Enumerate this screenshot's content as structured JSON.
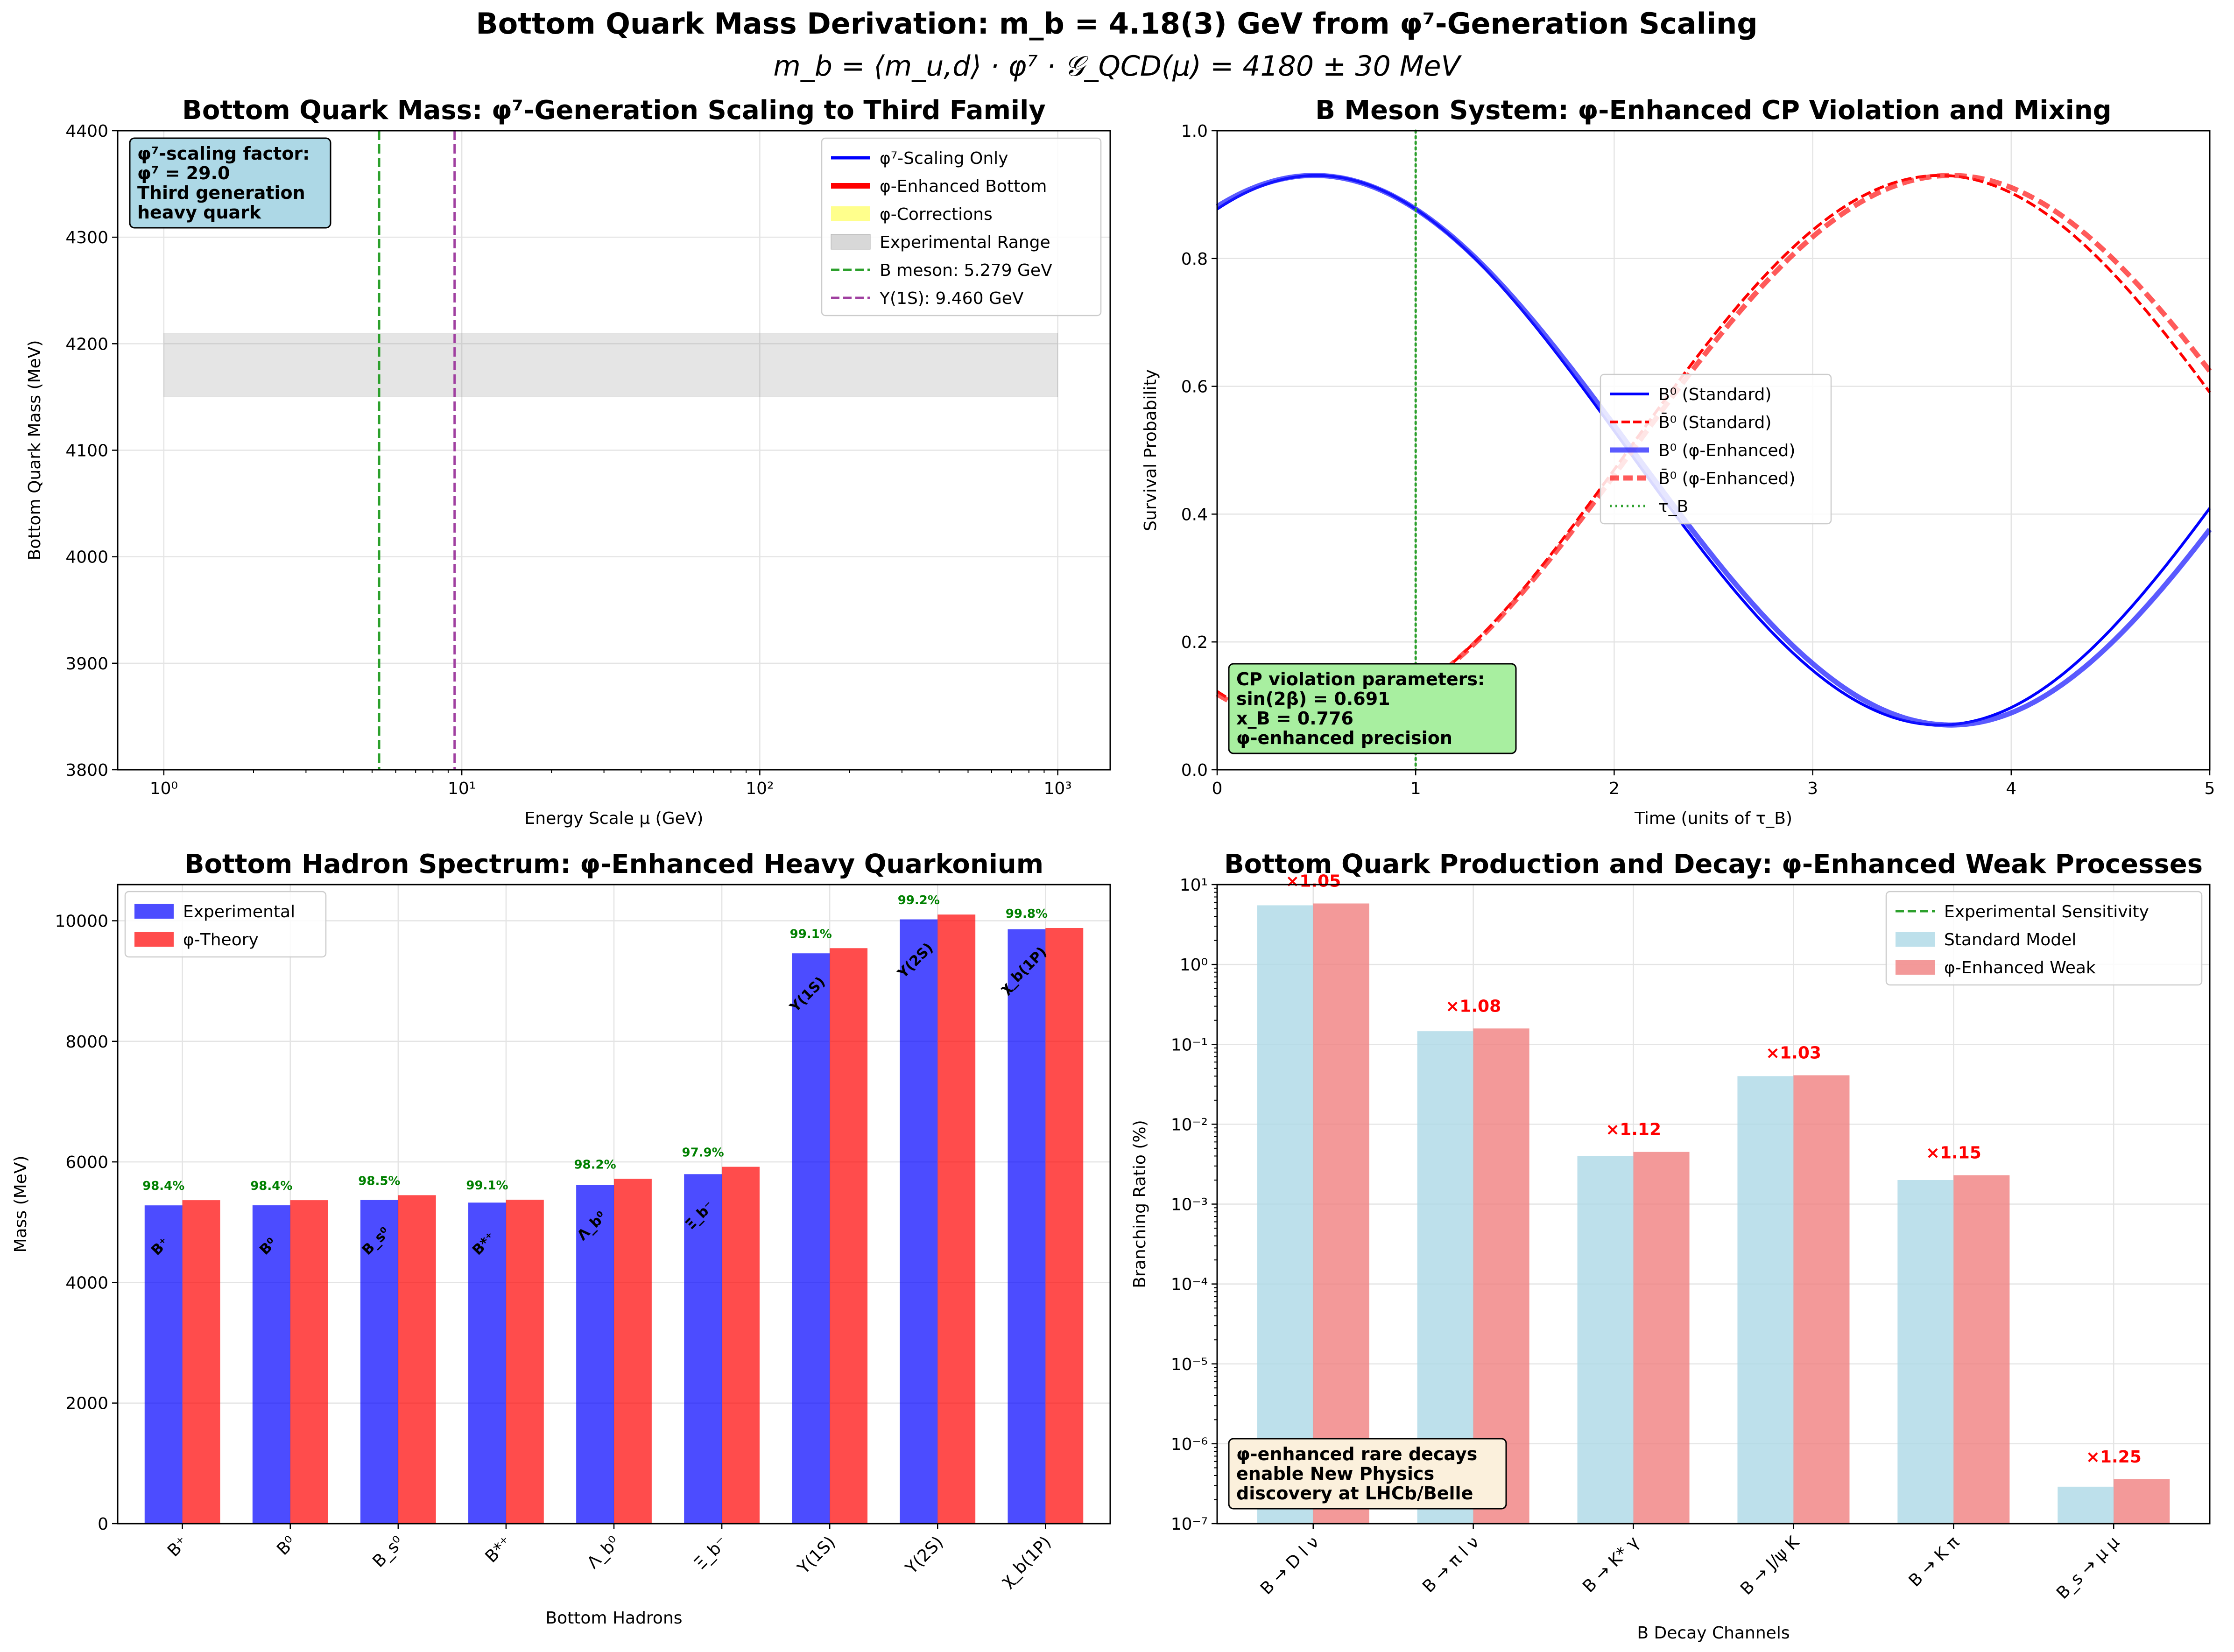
{
  "figure": {
    "suptitle": "Bottom Quark Mass Derivation: m_b = 4.18(3) GeV from φ⁷-Generation Scaling",
    "formula": "m_b = ⟨m_u,d⟩ · φ⁷ · 𝒢_QCD(μ) = 4180 ± 30 MeV"
  },
  "chart_data": [
    {
      "type": "line",
      "title": "Bottom Quark Mass: φ⁷-Generation Scaling to Third Family",
      "xlabel": "Energy Scale μ (GeV)",
      "ylabel": "Bottom Quark Mass (MeV)",
      "xscale": "log",
      "xlim": [
        0.7,
        1500
      ],
      "ylim": [
        3800,
        4400
      ],
      "xticks": [
        1,
        10,
        100,
        1000
      ],
      "xtick_labels": [
        "10⁰",
        "10¹",
        "10²",
        "10³"
      ],
      "yticks": [
        3800,
        3900,
        4000,
        4100,
        4200,
        4300,
        4400
      ],
      "grid": true,
      "experimental_range": {
        "x": [
          1,
          1000
        ],
        "y": [
          4150,
          4210
        ]
      },
      "vlines": [
        {
          "x": 5.279,
          "label": "B meson: 5.279 GeV",
          "color": "#2ca02c"
        },
        {
          "x": 9.46,
          "label": "Υ(1S): 9.460 GeV",
          "color": "#a040a0"
        }
      ],
      "legend": [
        "φ⁷-Scaling Only",
        "φ-Enhanced Bottom",
        "φ-Corrections",
        "Experimental Range",
        "B meson: 5.279 GeV",
        "Υ(1S): 9.460 GeV"
      ],
      "legend_position": "upper-right",
      "annotation": [
        "φ⁷-scaling factor:",
        "φ⁷ = 29.0",
        "Third generation",
        "heavy quark"
      ]
    },
    {
      "type": "line",
      "title": "B Meson System: φ-Enhanced CP Violation and Mixing",
      "xlabel": "Time (units of τ_B)",
      "ylabel": "Survival Probability",
      "xlim": [
        0,
        5
      ],
      "ylim": [
        0,
        1
      ],
      "xticks": [
        0,
        1,
        2,
        3,
        4,
        5
      ],
      "yticks": [
        0,
        0.2,
        0.4,
        0.6,
        0.8,
        1.0
      ],
      "grid": true,
      "model": {
        "B0_standard": {
          "amplitude": 0.43,
          "omega": 1.0,
          "phase": 0.5,
          "offset": 0.5
        },
        "B0bar_standard": {
          "amplitude": -0.43,
          "omega": 1.0,
          "phase": 0.5,
          "offset": 0.5
        },
        "B0_enhanced": {
          "amplitude": 0.43,
          "omega": 0.98,
          "phase": 0.48,
          "offset": 0.5
        },
        "B0bar_enhanced": {
          "amplitude": -0.43,
          "omega": 0.98,
          "phase": 0.48,
          "offset": 0.5
        }
      },
      "tau_line": 1,
      "legend": [
        "B⁰ (Standard)",
        "B̄⁰ (Standard)",
        "B⁰ (φ-Enhanced)",
        "B̄⁰ (φ-Enhanced)",
        "τ_B"
      ],
      "legend_position": "center-right",
      "annotation": [
        "CP violation parameters:",
        "sin(2β) = 0.691",
        "x_B = 0.776",
        "φ-enhanced precision"
      ]
    },
    {
      "type": "bar",
      "title": "Bottom Hadron Spectrum: φ-Enhanced Heavy Quarkonium",
      "xlabel": "Bottom Hadrons",
      "ylabel": "Mass (MeV)",
      "ylim": [
        0,
        10600
      ],
      "yticks": [
        0,
        2000,
        4000,
        6000,
        8000,
        10000
      ],
      "grid": true,
      "categories": [
        "B⁺",
        "B⁰",
        "B_s⁰",
        "B*⁺",
        "Λ_b⁰",
        "Ξ_b⁻",
        "Υ(1S)",
        "Υ(2S)",
        "χ_b(1P)"
      ],
      "series": [
        {
          "name": "Experimental",
          "values": [
            5279,
            5280,
            5367,
            5325,
            5620,
            5797,
            9460,
            10023,
            9860
          ]
        },
        {
          "name": "φ-Theory",
          "values": [
            5365,
            5365,
            5448,
            5373,
            5720,
            5919,
            9545,
            10103,
            9880
          ]
        }
      ],
      "accuracy_labels": [
        "98.4%",
        "98.4%",
        "98.5%",
        "99.1%",
        "98.2%",
        "97.9%",
        "99.1%",
        "99.2%",
        "99.8%"
      ],
      "bar_labels": [
        "B⁺",
        "B⁰",
        "B_s⁰",
        "B*⁺",
        "Λ_b⁰",
        "Ξ_b⁻",
        "Υ(1S)",
        "Υ(2S)",
        "χ_b(1P)"
      ],
      "legend_position": "upper-left"
    },
    {
      "type": "bar",
      "title": "Bottom Quark Production and Decay: φ-Enhanced Weak Processes",
      "xlabel": "B Decay Channels",
      "ylabel": "Branching Ratio (%)",
      "yscale": "log",
      "ylim": [
        1e-07,
        10
      ],
      "ytick_labels": [
        "10⁻⁷",
        "10⁻⁶",
        "10⁻⁵",
        "10⁻⁴",
        "10⁻³",
        "10⁻²",
        "10⁻¹",
        "10⁰",
        "10¹"
      ],
      "grid": true,
      "categories": [
        "B → D l ν",
        "B → π l ν",
        "B → K* γ",
        "B → J/ψ K",
        "B → K π",
        "B_s → μ μ"
      ],
      "series": [
        {
          "name": "Standard Model",
          "values": [
            5.5,
            0.146,
            0.004,
            0.04,
            0.002,
            2.9e-07
          ]
        },
        {
          "name": "φ-Enhanced Weak",
          "values": [
            5.8,
            0.158,
            0.0045,
            0.041,
            0.0023,
            3.6e-07
          ]
        }
      ],
      "factor_labels": [
        "×1.05",
        "×1.08",
        "×1.12",
        "×1.03",
        "×1.15",
        "×1.25"
      ],
      "legend": [
        "Experimental Sensitivity",
        "Standard Model",
        "φ-Enhanced Weak"
      ],
      "legend_position": "upper-right",
      "annotation": [
        "φ-enhanced rare decays",
        "enable New Physics",
        "discovery at LHCb/Belle"
      ]
    }
  ]
}
